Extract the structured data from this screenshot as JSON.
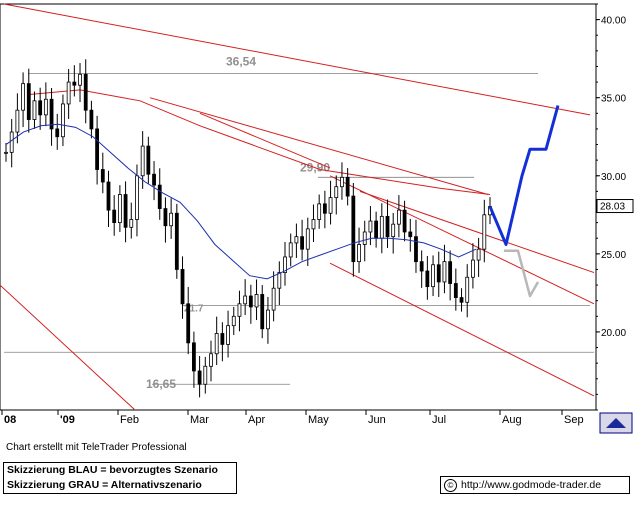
{
  "chart_data": {
    "type": "candlestick",
    "y_axis": {
      "ticks": [
        20.0,
        25.0,
        30.0,
        35.0,
        40.0
      ],
      "tick_labels": [
        "20.00",
        "25.00",
        "30.00",
        "35.00",
        "40.00"
      ],
      "ylim": [
        15.0,
        41.0
      ],
      "position": "right"
    },
    "x_axis": {
      "labels": [
        "08",
        "'09",
        "Feb",
        "Mar",
        "Apr",
        "May",
        "Jun",
        "Jul",
        "Aug",
        "Sep"
      ]
    },
    "last_price_label": "28.03",
    "last_price": 28.03,
    "levels": [
      {
        "label": "36,54",
        "value": 36.54
      },
      {
        "label": "29,90",
        "value": 29.9
      },
      {
        "label": "21.7",
        "value": 21.7
      },
      {
        "label": "16,65",
        "value": 16.65
      },
      {
        "label": "",
        "value": 18.7
      }
    ],
    "price_series": [
      31.5,
      32.8,
      34.2,
      35.9,
      33.6,
      34.8,
      33.9,
      34.9,
      33.0,
      32.5,
      34.6,
      36.0,
      35.8,
      36.5,
      34.2,
      33.0,
      30.4,
      29.6,
      27.8,
      27.0,
      28.8,
      26.7,
      27.2,
      30.0,
      31.9,
      30.1,
      29.4,
      27.9,
      26.8,
      27.6,
      24.0,
      21.8,
      19.3,
      17.5,
      16.65,
      17.8,
      18.6,
      19.9,
      19.2,
      20.4,
      21.0,
      21.8,
      22.3,
      21.6,
      22.4,
      20.2,
      21.4,
      22.8,
      23.8,
      24.8,
      25.7,
      26.1,
      25.3,
      26.6,
      27.2,
      28.2,
      27.6,
      28.6,
      29.3,
      29.9,
      28.7,
      24.5,
      25.6,
      26.4,
      27.1,
      26.0,
      27.4,
      26.1,
      26.9,
      27.8,
      26.4,
      26.1,
      24.5,
      23.9,
      22.9,
      24.3,
      23.2,
      24.5,
      23.1,
      22.2,
      21.9,
      23.5,
      24.6,
      25.3,
      27.5,
      28.03
    ],
    "moving_average_blue": [
      32.0,
      32.8,
      33.2,
      33.3,
      33.1,
      32.5,
      31.5,
      30.5,
      29.6,
      28.9,
      28.3,
      27.1,
      25.6,
      24.6,
      23.6,
      23.4,
      23.9,
      24.5,
      24.9,
      25.3,
      25.7,
      26.0,
      26.0,
      25.9,
      25.7,
      25.3,
      24.8,
      25.3
    ],
    "scenario_blue_path": [
      28.03,
      25.6,
      30.0,
      31.7,
      31.7,
      34.5
    ],
    "scenario_grey_path": [
      25.2,
      25.2,
      22.3,
      23.2
    ]
  },
  "footer": {
    "credit": "Chart erstellt mit TeleTrader Professional",
    "legend_blue": "Skizzierung BLAU = bevorzugtes Szenario",
    "legend_grey": "Skizzierung GRAU = Alternativszenario",
    "source": "http://www.godmode-trader.de",
    "copyright_symbol": "©"
  },
  "colors": {
    "price": "#000000",
    "moving_average": "#1c2fb0",
    "trendline": "#d42020",
    "scenario_blue": "#1230d6",
    "scenario_grey": "#b8b8b8",
    "level_line": "#808080"
  }
}
